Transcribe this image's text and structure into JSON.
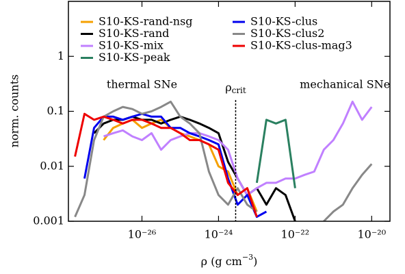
{
  "chart_data": {
    "type": "line",
    "ylabel": "norm. counts",
    "xlabel": {
      "main": "ρ (g cm",
      "sup": "−3",
      "end": ")"
    },
    "annotations": [
      {
        "text": "thermal SNe",
        "x": 1e-26,
        "y": 0.3
      },
      {
        "text": "mechanical SNe",
        "x": 2e-21,
        "y": 0.3
      }
    ],
    "crit": {
      "symbol": "ρ",
      "sub": "crit",
      "x": 2.8e-24
    },
    "log_x": true,
    "log_y": true,
    "legend": "upper left",
    "xlim": [
      1.2e-28,
      3e-20
    ],
    "xticks": [
      {
        "value": 1e-26,
        "label": "10⁻²⁶"
      },
      {
        "value": 1e-24,
        "label": "10⁻²⁴"
      },
      {
        "value": 1e-22,
        "label": "10⁻²²"
      },
      {
        "value": 1e-20,
        "label": "10⁻²⁰"
      }
    ],
    "ylim": [
      0.001,
      10
    ],
    "yticks": [
      0.001,
      0.01,
      0.1,
      1
    ],
    "x": [
      1.78e-28,
      3.16e-28,
      5.62e-28,
      1e-27,
      1.78e-27,
      3.16e-27,
      5.62e-27,
      1e-26,
      1.78e-26,
      3.16e-26,
      5.62e-26,
      1e-25,
      1.78e-25,
      3.16e-25,
      5.62e-25,
      1e-24,
      1.78e-24,
      3.16e-24,
      5.62e-24,
      1e-23,
      1.78e-23,
      3.16e-23,
      5.62e-23,
      1e-22,
      1.78e-22,
      3.16e-22,
      5.62e-22,
      1e-21,
      1.78e-21,
      3.16e-21,
      5.62e-21,
      1e-20,
      1.78e-20
    ],
    "series": [
      {
        "name": "S10-KS-rand-nsg",
        "color": "#f5a000",
        "values": [
          null,
          null,
          null,
          0.03,
          0.05,
          0.06,
          0.07,
          0.05,
          0.06,
          0.07,
          0.05,
          0.04,
          0.035,
          0.03,
          0.025,
          0.01,
          0.008,
          0.003,
          0.004,
          0.0015,
          null,
          null,
          null,
          null,
          null,
          null,
          null,
          null,
          null,
          null,
          null,
          null,
          null
        ]
      },
      {
        "name": "S10-KS-rand",
        "color": "#000000",
        "values": [
          null,
          null,
          0.04,
          0.06,
          0.07,
          0.07,
          0.08,
          0.07,
          0.07,
          0.06,
          0.07,
          0.08,
          0.07,
          0.06,
          0.05,
          0.04,
          0.012,
          0.006,
          0.003,
          0.004,
          0.002,
          0.004,
          0.003,
          0.001,
          null,
          null,
          null,
          null,
          null,
          null,
          null,
          null,
          null
        ]
      },
      {
        "name": "S10-KS-mix",
        "color": "#c080ff",
        "values": [
          null,
          null,
          null,
          0.035,
          0.04,
          0.045,
          0.035,
          0.03,
          0.04,
          0.02,
          0.03,
          0.035,
          0.04,
          0.04,
          0.035,
          0.03,
          0.02,
          0.006,
          0.003,
          0.004,
          0.005,
          0.005,
          0.006,
          0.006,
          0.007,
          0.008,
          0.02,
          0.03,
          0.06,
          0.15,
          0.07,
          0.12,
          null
        ]
      },
      {
        "name": "S10-KS-peak",
        "color": "#2a8060",
        "values": [
          null,
          null,
          null,
          null,
          null,
          null,
          null,
          null,
          null,
          null,
          null,
          null,
          null,
          null,
          null,
          null,
          null,
          null,
          null,
          0.005,
          0.07,
          0.06,
          0.07,
          0.004,
          null,
          null,
          null,
          null,
          null,
          null,
          null,
          null,
          null
        ]
      },
      {
        "name": "S10-KS-clus",
        "color": "#0000ee",
        "values": [
          null,
          0.006,
          0.05,
          0.08,
          0.08,
          0.07,
          0.08,
          0.09,
          0.08,
          0.08,
          0.05,
          0.05,
          0.04,
          0.035,
          0.03,
          0.025,
          0.006,
          0.002,
          0.003,
          0.0012,
          0.0015,
          null,
          null,
          null,
          null,
          null,
          null,
          null,
          null,
          null,
          null,
          null,
          null
        ]
      },
      {
        "name": "S10-KS-clus2",
        "color": "#888888",
        "values": [
          0.0012,
          0.003,
          0.03,
          0.08,
          0.1,
          0.12,
          0.11,
          0.09,
          0.1,
          0.12,
          0.15,
          0.08,
          0.06,
          0.04,
          0.008,
          0.003,
          0.002,
          0.004,
          0.002,
          0.0015,
          null,
          null,
          null,
          null,
          null,
          null,
          0.001,
          0.0015,
          0.002,
          0.004,
          0.007,
          0.011,
          null
        ]
      },
      {
        "name": "S10-KS-clus-mag3",
        "color": "#ee0000",
        "values": [
          0.015,
          0.09,
          0.07,
          0.08,
          0.07,
          0.06,
          0.07,
          0.07,
          0.06,
          0.05,
          0.05,
          0.04,
          0.03,
          0.03,
          0.025,
          0.02,
          0.005,
          0.003,
          0.004,
          0.0012,
          null,
          null,
          null,
          null,
          null,
          null,
          null,
          null,
          null,
          null,
          null,
          null,
          null
        ]
      }
    ]
  }
}
